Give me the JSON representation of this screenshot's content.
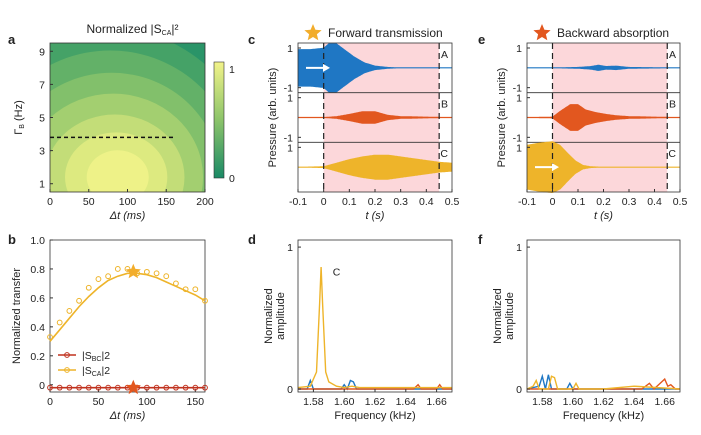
{
  "colors": {
    "blue": "#1f77c4",
    "orange_red": "#e2571f",
    "yellow_orange": "#eeb42a",
    "dark_red": "#c0321e",
    "pink_band": "#fcd7da",
    "star_gold": "#f2ad2c",
    "star_red": "#e2571f"
  },
  "chart_data": [
    {
      "panel": "a",
      "type": "heatmap",
      "title": "Normalized |S_CA|²",
      "title_parts": [
        "Normalized |S",
        "CA",
        "|²"
      ],
      "xlabel": "Δt (ms)",
      "ylabel": "Γ_B (Hz)",
      "ylabel_parts": [
        "Γ",
        "B",
        " (Hz)"
      ],
      "xlim": [
        0,
        200
      ],
      "ylim": [
        0.5,
        9.5
      ],
      "xticks": [
        "0",
        "50",
        "100",
        "150",
        "200"
      ],
      "yticks": [
        "1",
        "3",
        "5",
        "7",
        "9"
      ],
      "colorbar": {
        "min": 0,
        "max": 1,
        "ticks": [
          "0",
          "1"
        ],
        "colors": [
          "#1a8a66",
          "#f2f38a"
        ]
      },
      "dashed_line": {
        "y": 3.8,
        "x_range": [
          0,
          160
        ]
      }
    },
    {
      "panel": "b",
      "type": "line",
      "xlabel": "Δt (ms)",
      "ylabel": "Normalized transfer",
      "xlim": [
        0,
        160
      ],
      "ylim": [
        -0.05,
        1.0
      ],
      "xticks": [
        "0",
        "50",
        "100",
        "150"
      ],
      "yticks": [
        "0",
        "0.2",
        "0.4",
        "0.6",
        "0.8",
        "1.0"
      ],
      "series": [
        {
          "name": "|S_BC|²",
          "name_parts": [
            "|S",
            "BC",
            "|2"
          ],
          "color": "#c0321e",
          "points": [
            [
              0,
              -0.02
            ],
            [
              10,
              -0.02
            ],
            [
              20,
              -0.02
            ],
            [
              30,
              -0.02
            ],
            [
              40,
              -0.02
            ],
            [
              50,
              -0.02
            ],
            [
              60,
              -0.02
            ],
            [
              70,
              -0.02
            ],
            [
              80,
              -0.02
            ],
            [
              90,
              -0.02
            ],
            [
              100,
              -0.02
            ],
            [
              110,
              -0.02
            ],
            [
              120,
              -0.02
            ],
            [
              130,
              -0.02
            ],
            [
              140,
              -0.02
            ],
            [
              150,
              -0.02
            ],
            [
              160,
              -0.02
            ]
          ],
          "fit": [
            [
              0,
              -0.02
            ],
            [
              160,
              -0.02
            ]
          ]
        },
        {
          "name": "|S_CA|²",
          "name_parts": [
            "|S",
            "CA",
            "|2"
          ],
          "color": "#eeb42a",
          "points": [
            [
              0,
              0.33
            ],
            [
              10,
              0.43
            ],
            [
              20,
              0.51
            ],
            [
              30,
              0.58
            ],
            [
              40,
              0.67
            ],
            [
              50,
              0.73
            ],
            [
              60,
              0.75
            ],
            [
              70,
              0.8
            ],
            [
              80,
              0.8
            ],
            [
              90,
              0.77
            ],
            [
              100,
              0.78
            ],
            [
              110,
              0.77
            ],
            [
              120,
              0.75
            ],
            [
              130,
              0.7
            ],
            [
              140,
              0.66
            ],
            [
              150,
              0.66
            ],
            [
              160,
              0.58
            ]
          ],
          "fit": [
            [
              0,
              0.3
            ],
            [
              10,
              0.38
            ],
            [
              20,
              0.46
            ],
            [
              30,
              0.54
            ],
            [
              40,
              0.61
            ],
            [
              50,
              0.67
            ],
            [
              60,
              0.72
            ],
            [
              70,
              0.75
            ],
            [
              80,
              0.77
            ],
            [
              90,
              0.77
            ],
            [
              100,
              0.76
            ],
            [
              110,
              0.74
            ],
            [
              120,
              0.71
            ],
            [
              130,
              0.68
            ],
            [
              140,
              0.65
            ],
            [
              150,
              0.62
            ],
            [
              160,
              0.58
            ]
          ]
        }
      ],
      "stars": [
        {
          "x": 86,
          "y": 0.78,
          "color": "#f2ad2c"
        },
        {
          "x": 86,
          "y": -0.02,
          "color": "#e2571f"
        }
      ]
    },
    {
      "panel": "c",
      "type": "area",
      "title": "Forward transmission",
      "xlabel": "t (s)",
      "ylabel": "Pressure (arb. units)",
      "xlim": [
        -0.1,
        0.5
      ],
      "xticks": [
        "-0.1",
        "0",
        "0.1",
        "0.2",
        "0.3",
        "0.4",
        "0.5"
      ],
      "yticks": [
        "1",
        "-1",
        "1",
        "-1",
        "1"
      ],
      "channels": [
        {
          "label": "A",
          "color": "#1f77c4",
          "envelope": [
            [
              -0.1,
              0.42
            ],
            [
              -0.05,
              0.42
            ],
            [
              0,
              0.45
            ],
            [
              0.02,
              0.55
            ],
            [
              0.05,
              0.55
            ],
            [
              0.08,
              0.42
            ],
            [
              0.12,
              0.25
            ],
            [
              0.16,
              0.12
            ],
            [
              0.2,
              0.05
            ],
            [
              0.25,
              0.02
            ],
            [
              0.3,
              0.01
            ],
            [
              0.5,
              0.01
            ]
          ]
        },
        {
          "label": "B",
          "color": "#e2571f",
          "envelope": [
            [
              -0.1,
              0.01
            ],
            [
              0.0,
              0.01
            ],
            [
              0.05,
              0.03
            ],
            [
              0.1,
              0.08
            ],
            [
              0.15,
              0.14
            ],
            [
              0.2,
              0.14
            ],
            [
              0.25,
              0.06
            ],
            [
              0.3,
              0.03
            ],
            [
              0.4,
              0.02
            ],
            [
              0.5,
              0.01
            ]
          ]
        },
        {
          "label": "C",
          "color": "#eeb42a",
          "envelope": [
            [
              -0.1,
              0.01
            ],
            [
              0.0,
              0.02
            ],
            [
              0.05,
              0.1
            ],
            [
              0.1,
              0.18
            ],
            [
              0.15,
              0.24
            ],
            [
              0.2,
              0.28
            ],
            [
              0.25,
              0.28
            ],
            [
              0.3,
              0.24
            ],
            [
              0.35,
              0.2
            ],
            [
              0.4,
              0.16
            ],
            [
              0.45,
              0.12
            ],
            [
              0.5,
              0.1
            ]
          ]
        }
      ],
      "dashed_lines_x": [
        0,
        0.45
      ],
      "band_x": [
        0,
        0.45
      ]
    },
    {
      "panel": "d",
      "type": "line",
      "xlabel": "Frequency (kHz)",
      "ylabel": "Normalized amplitude",
      "xlim": [
        1.57,
        1.67
      ],
      "ylim": [
        0,
        1.05
      ],
      "xticks": [
        "1.58",
        "1.60",
        "1.62",
        "1.64",
        "1.66"
      ],
      "yticks": [
        "0",
        "1"
      ],
      "series_label": "C",
      "series": [
        {
          "color": "#1f77c4",
          "points": [
            [
              1.57,
              0
            ],
            [
              1.576,
              0.0
            ],
            [
              1.578,
              0.06
            ],
            [
              1.58,
              0
            ],
            [
              1.598,
              0
            ],
            [
              1.6,
              0.03
            ],
            [
              1.602,
              0
            ],
            [
              1.604,
              0.06
            ],
            [
              1.606,
              0.05
            ],
            [
              1.608,
              0
            ],
            [
              1.67,
              0
            ]
          ]
        },
        {
          "color": "#e2571f",
          "points": [
            [
              1.57,
              0
            ],
            [
              1.645,
              0
            ],
            [
              1.648,
              0.03
            ],
            [
              1.65,
              0
            ],
            [
              1.66,
              0
            ],
            [
              1.662,
              0.03
            ],
            [
              1.664,
              0
            ],
            [
              1.67,
              0
            ]
          ]
        },
        {
          "color": "#eeb42a",
          "points": [
            [
              1.57,
              0.01
            ],
            [
              1.578,
              0.02
            ],
            [
              1.582,
              0.12
            ],
            [
              1.584,
              0.6
            ],
            [
              1.585,
              0.86
            ],
            [
              1.586,
              0.6
            ],
            [
              1.588,
              0.12
            ],
            [
              1.59,
              0.05
            ],
            [
              1.595,
              0.02
            ],
            [
              1.6,
              0.01
            ],
            [
              1.605,
              0.02
            ],
            [
              1.61,
              0.01
            ],
            [
              1.67,
              0.01
            ]
          ]
        }
      ]
    },
    {
      "panel": "e",
      "type": "area",
      "title": "Backward absorption",
      "xlabel": "t (s)",
      "ylabel": "Pressure (arb. units)",
      "xlim": [
        -0.1,
        0.5
      ],
      "xticks": [
        "-0.1",
        "0",
        "0.1",
        "0.2",
        "0.3",
        "0.4",
        "0.5"
      ],
      "yticks": [
        "1",
        "-1",
        "1",
        "-1",
        "1"
      ],
      "channels": [
        {
          "label": "A",
          "color": "#1f77c4",
          "envelope": [
            [
              -0.1,
              0.01
            ],
            [
              0.0,
              0.01
            ],
            [
              0.1,
              0.02
            ],
            [
              0.15,
              0.04
            ],
            [
              0.18,
              0.07
            ],
            [
              0.21,
              0.04
            ],
            [
              0.25,
              0.05
            ],
            [
              0.3,
              0.02
            ],
            [
              0.5,
              0.01
            ]
          ]
        },
        {
          "label": "B",
          "color": "#e2571f",
          "envelope": [
            [
              -0.1,
              0.01
            ],
            [
              0.0,
              0.02
            ],
            [
              0.03,
              0.15
            ],
            [
              0.07,
              0.3
            ],
            [
              0.1,
              0.3
            ],
            [
              0.13,
              0.18
            ],
            [
              0.17,
              0.12
            ],
            [
              0.21,
              0.08
            ],
            [
              0.25,
              0.05
            ],
            [
              0.3,
              0.03
            ],
            [
              0.5,
              0.01
            ]
          ]
        },
        {
          "label": "C",
          "color": "#eeb42a",
          "envelope": [
            [
              -0.1,
              0.5
            ],
            [
              -0.05,
              0.55
            ],
            [
              0,
              0.58
            ],
            [
              0.03,
              0.5
            ],
            [
              0.06,
              0.32
            ],
            [
              0.09,
              0.15
            ],
            [
              0.12,
              0.05
            ],
            [
              0.15,
              0.02
            ],
            [
              0.2,
              0.01
            ],
            [
              0.5,
              0.01
            ]
          ]
        }
      ],
      "dashed_lines_x": [
        0,
        0.45
      ],
      "band_x": [
        0,
        0.45
      ]
    },
    {
      "panel": "f",
      "type": "line",
      "xlabel": "Frequency (kHz)",
      "ylabel": "Normalized amplitude",
      "xlim": [
        1.57,
        1.67
      ],
      "ylim": [
        0,
        1.05
      ],
      "xticks": [
        "1.58",
        "1.60",
        "1.62",
        "1.64",
        "1.66"
      ],
      "yticks": [
        "0",
        "1"
      ],
      "series": [
        {
          "color": "#1f77c4",
          "points": [
            [
              1.57,
              0
            ],
            [
              1.578,
              0.02
            ],
            [
              1.58,
              0.09
            ],
            [
              1.582,
              0
            ],
            [
              1.584,
              0.1
            ],
            [
              1.586,
              0
            ],
            [
              1.596,
              0
            ],
            [
              1.598,
              0.04
            ],
            [
              1.6,
              0
            ],
            [
              1.67,
              0
            ]
          ]
        },
        {
          "color": "#e2571f",
          "points": [
            [
              1.57,
              0
            ],
            [
              1.645,
              0
            ],
            [
              1.65,
              0.04
            ],
            [
              1.653,
              0
            ],
            [
              1.66,
              0.07
            ],
            [
              1.662,
              0.02
            ],
            [
              1.664,
              0.03
            ],
            [
              1.667,
              0
            ],
            [
              1.67,
              0
            ]
          ]
        },
        {
          "color": "#eeb42a",
          "points": [
            [
              1.57,
              0
            ],
            [
              1.574,
              0.02
            ],
            [
              1.576,
              0.06
            ],
            [
              1.578,
              0
            ],
            [
              1.584,
              0
            ],
            [
              1.586,
              0.09
            ],
            [
              1.588,
              0.08
            ],
            [
              1.59,
              0
            ],
            [
              1.6,
              0
            ],
            [
              1.602,
              0.04
            ],
            [
              1.604,
              0
            ],
            [
              1.62,
              0
            ],
            [
              1.64,
              0.02
            ],
            [
              1.67,
              0
            ]
          ]
        }
      ]
    }
  ]
}
